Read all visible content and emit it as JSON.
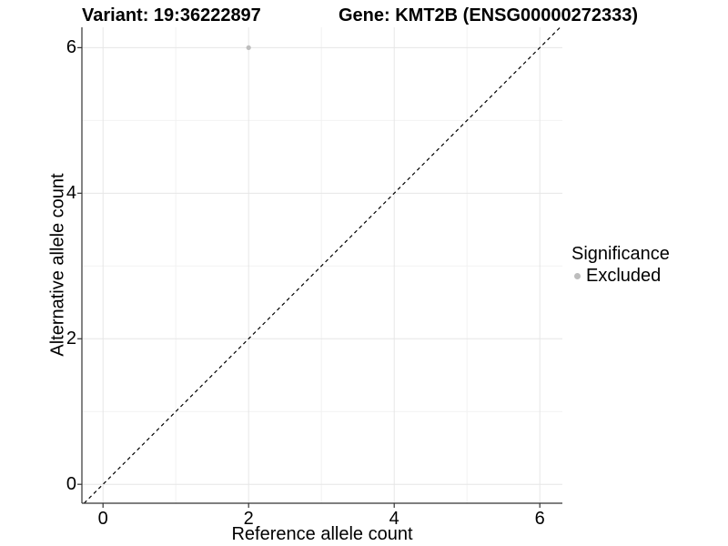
{
  "chart_data": {
    "type": "scatter",
    "title_left": "Variant: 19:36222897",
    "title_right": "Gene: KMT2B (ENSG00000272333)",
    "xlabel": "Reference allele count",
    "ylabel": "Alternative allele count",
    "xlim": [
      -0.29,
      6.31
    ],
    "ylim": [
      -0.26,
      6.28
    ],
    "x_ticks": [
      0,
      2,
      4,
      6
    ],
    "y_ticks": [
      0,
      2,
      4,
      6
    ],
    "x_minor_ticks": [
      1,
      3,
      5
    ],
    "y_minor_ticks": [
      1,
      3,
      5
    ],
    "grid": true,
    "reference_line": {
      "style": "dashed",
      "from": [
        -0.26,
        -0.26
      ],
      "to": [
        6.28,
        6.28
      ],
      "color": "#000000"
    },
    "series": [
      {
        "name": "Excluded",
        "color": "#bdbdbd",
        "points": [
          {
            "x": 2,
            "y": 6
          }
        ]
      }
    ],
    "legend": {
      "title": "Significance",
      "position": "right",
      "entries": [
        {
          "label": "Excluded",
          "color": "#bdbdbd"
        }
      ]
    },
    "colors": {
      "axis_line": "#333333",
      "tick_mark": "#333333",
      "grid_major": "#e6e6e6",
      "grid_minor": "#f2f2f2",
      "background": "#ffffff"
    }
  }
}
